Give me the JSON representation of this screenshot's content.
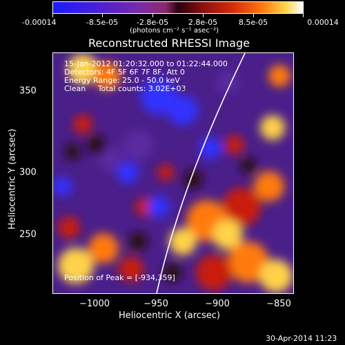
{
  "colorbar": {
    "tick_labels": [
      "-0.00014",
      "-8.5e-05",
      "-2.8e-05",
      "2.8e-05",
      "8.5e-05",
      "0.00014"
    ],
    "units_label": "(photons cm⁻² s⁻¹ asec⁻²)"
  },
  "plot": {
    "title": "Reconstructed RHESSI Image",
    "info": {
      "time_range": "15-Jan-2012 01:20:32.000 to 01:22:44.000",
      "detectors": "Detectors: 4F 5F 6F 7F 8F, Att 0",
      "energy_range": "Energy Range: 25.0 - 50.0 keV",
      "method": "Clean     Total counts: 3.02E+03"
    },
    "peak_text": "Position of Peak = [-934,359]",
    "x_axis": {
      "label": "Heliocentric X (arcsec)",
      "ticks": [
        "−1000",
        "−950",
        "−900",
        "−850"
      ]
    },
    "y_axis": {
      "label": "Heliocentric Y (arcsec)",
      "ticks": [
        "350",
        "300",
        "250"
      ]
    }
  },
  "footer": {
    "timestamp": "30-Apr-2014 11:23"
  },
  "palette": {
    "negative": "#3333ff",
    "mid_negative": "#5a2aa0",
    "background": "#2a0a18",
    "positive_low": "#c81a0a",
    "positive_mid": "#ff7a10",
    "positive_high": "#ffd24a",
    "limb_line": "#ffffff"
  }
}
